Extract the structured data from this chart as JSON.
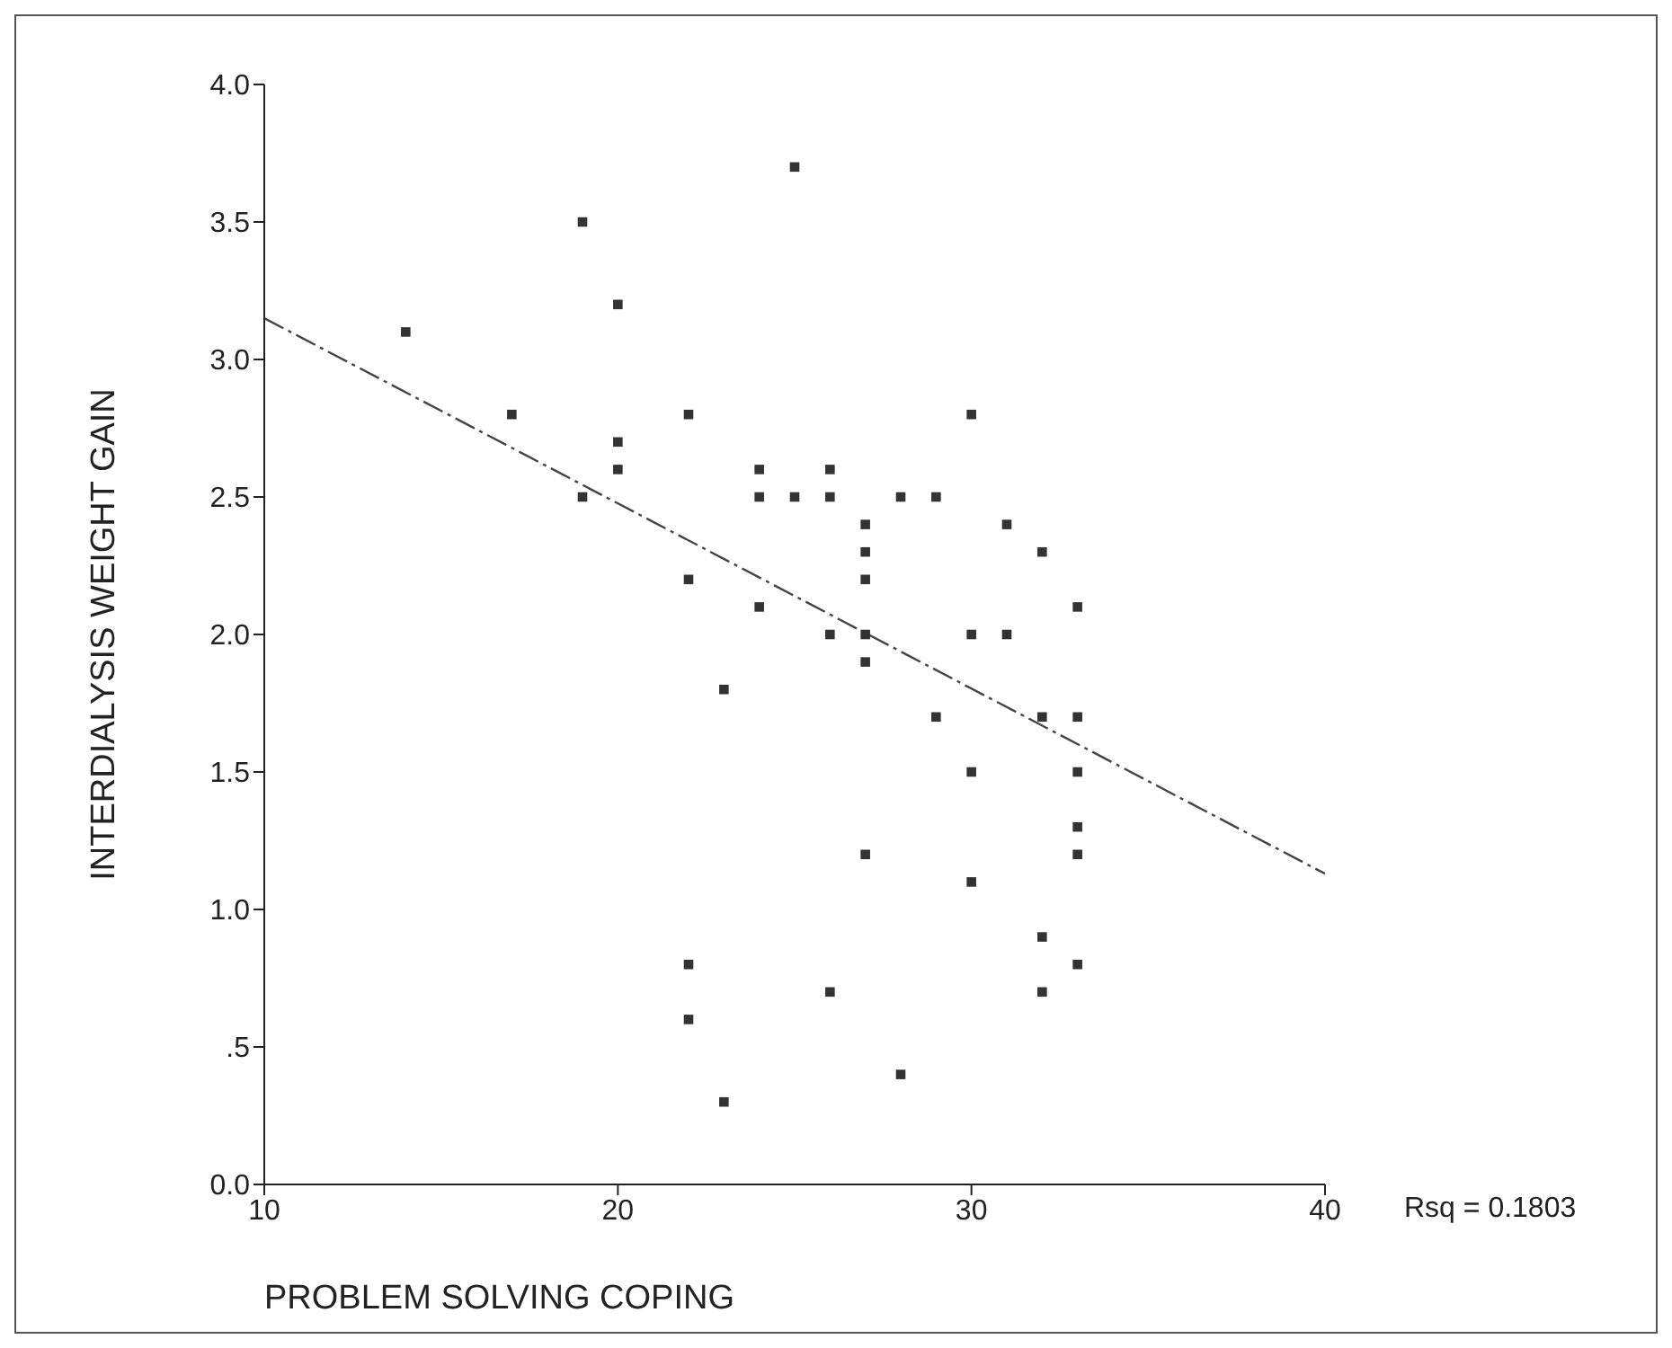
{
  "chart_data": {
    "type": "scatter",
    "xlabel": "PROBLEM SOLVING COPING",
    "ylabel": "INTERDIALYSIS WEIGHT GAIN",
    "annotations": [
      "Rsq = 0.1803"
    ],
    "series": [
      {
        "color": "#333333",
        "marker": "square",
        "x": [
          14,
          17,
          19,
          19,
          20,
          20,
          20,
          22,
          22,
          22,
          22,
          23,
          23,
          24,
          24,
          24,
          25,
          25,
          26,
          26,
          26,
          26,
          27,
          27,
          27,
          27,
          27,
          27,
          28,
          28,
          29,
          29,
          30,
          30,
          30,
          30,
          31,
          31,
          32,
          32,
          32,
          32,
          33,
          33,
          33,
          33,
          33,
          33
        ],
        "values": [
          3.1,
          2.8,
          3.5,
          2.5,
          3.2,
          2.7,
          2.6,
          2.8,
          2.2,
          0.8,
          0.6,
          1.8,
          0.3,
          2.6,
          2.5,
          2.1,
          2.5,
          3.7,
          2.6,
          2.5,
          2.0,
          0.7,
          2.4,
          2.3,
          2.2,
          2.0,
          1.9,
          1.2,
          2.5,
          0.4,
          2.5,
          1.7,
          2.8,
          2.0,
          1.5,
          1.1,
          2.4,
          2.0,
          2.3,
          1.7,
          0.9,
          0.7,
          2.1,
          1.7,
          1.5,
          1.3,
          1.2,
          0.8
        ]
      },
      {
        "type": "line",
        "color": "#444444",
        "line_style": "dashed",
        "x": [
          10,
          40
        ],
        "values": [
          3.15,
          1.13
        ]
      }
    ],
    "xlim": [
      10,
      40
    ],
    "xticks": [
      10,
      20,
      30,
      40
    ],
    "ylim": [
      0,
      4
    ],
    "yticks": [
      {
        "value": 0,
        "label": "0.0"
      },
      {
        "value": 0.5,
        "label": ".5"
      },
      {
        "value": 1,
        "label": "1.0"
      },
      {
        "value": 1.5,
        "label": "1.5"
      },
      {
        "value": 2,
        "label": "2.0"
      },
      {
        "value": 2.5,
        "label": "2.5"
      },
      {
        "value": 3,
        "label": "3.0"
      },
      {
        "value": 3.5,
        "label": "3.5"
      },
      {
        "value": 4,
        "label": "4.0"
      }
    ],
    "grid": false,
    "legend": false
  }
}
